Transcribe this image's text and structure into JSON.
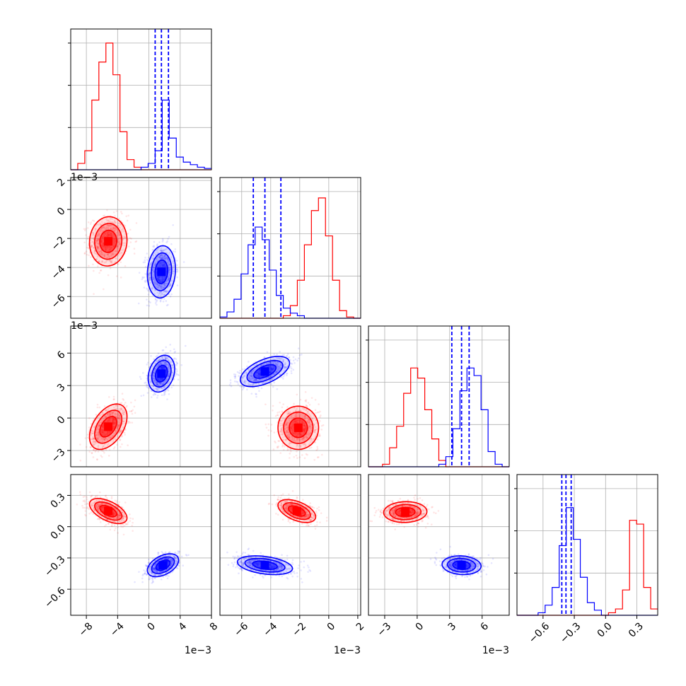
{
  "chart_data": {
    "type": "corner",
    "colors": {
      "red": "#ff0000",
      "blue": "#0000ff",
      "grid": "#b0b0b0",
      "frame": "#000000"
    },
    "grid": true,
    "parameters": [
      {
        "range": [
          -10,
          8
        ],
        "ticks": [
          -8,
          -4,
          0,
          4,
          8
        ],
        "tick_labels": [
          "−8",
          "−4",
          "0",
          "4",
          "8"
        ],
        "offset_text": "1e−3"
      },
      {
        "range": [
          -7.5,
          2.2
        ],
        "ticks": [
          -6,
          -4,
          -2,
          0,
          2
        ],
        "tick_labels": [
          "−6",
          "−4",
          "−2",
          "0",
          "2"
        ],
        "offset_text": "1e−3"
      },
      {
        "range": [
          -4.5,
          8.5
        ],
        "ticks": [
          -3,
          0,
          3,
          6
        ],
        "tick_labels": [
          "−3",
          "0",
          "3",
          "6"
        ],
        "offset_text": "1e−3"
      },
      {
        "range": [
          -0.85,
          0.5
        ],
        "ticks": [
          -0.6,
          -0.3,
          0.0,
          0.3
        ],
        "tick_labels": [
          "−0.6",
          "−0.3",
          "0.0",
          "0.3"
        ],
        "offset_text": ""
      }
    ],
    "histograms": [
      {
        "bin_range": [
          -10,
          8
        ],
        "red": [
          0,
          0.05,
          0.15,
          0.55,
          0.85,
          1.0,
          0.75,
          0.3,
          0.08,
          0.02,
          0,
          0,
          0,
          0,
          0,
          0,
          0,
          0,
          0,
          0
        ],
        "blue": [
          0,
          0,
          0,
          0,
          0,
          0,
          0,
          0,
          0,
          0,
          0.02,
          0.05,
          0.15,
          0.55,
          0.25,
          0.1,
          0.06,
          0.04,
          0.02,
          0.01
        ],
        "blue_quantiles": [
          0.8,
          1.6,
          2.5
        ]
      },
      {
        "bin_range": [
          -7.5,
          2.2
        ],
        "red": [
          0,
          0,
          0,
          0,
          0,
          0,
          0,
          0,
          0,
          0.02,
          0.1,
          0.3,
          0.58,
          0.85,
          0.95,
          0.65,
          0.3,
          0.06,
          0.01,
          0
        ],
        "blue": [
          0.01,
          0.05,
          0.15,
          0.35,
          0.58,
          0.72,
          0.62,
          0.38,
          0.18,
          0.08,
          0.04,
          0.02,
          0,
          0,
          0,
          0,
          0,
          0,
          0,
          0
        ],
        "blue_quantiles": [
          -5.2,
          -4.4,
          -3.3
        ]
      },
      {
        "bin_range": [
          -4.5,
          8.5
        ],
        "red": [
          0,
          0,
          0.02,
          0.15,
          0.32,
          0.58,
          0.78,
          0.7,
          0.45,
          0.22,
          0.05,
          0,
          0,
          0,
          0,
          0,
          0,
          0,
          0,
          0
        ],
        "blue": [
          0,
          0,
          0,
          0,
          0,
          0,
          0,
          0,
          0,
          0,
          0.02,
          0.08,
          0.3,
          0.6,
          0.78,
          0.72,
          0.45,
          0.12,
          0.02,
          0
        ],
        "blue_quantiles": [
          3.2,
          4.1,
          4.8
        ]
      },
      {
        "bin_range": [
          -0.85,
          0.5
        ],
        "red": [
          0,
          0,
          0,
          0,
          0,
          0,
          0,
          0,
          0,
          0,
          0,
          0,
          0,
          0.02,
          0.05,
          0.2,
          0.75,
          0.72,
          0.22,
          0.05
        ],
        "blue": [
          0,
          0,
          0,
          0.02,
          0.08,
          0.22,
          0.55,
          0.85,
          0.6,
          0.3,
          0.1,
          0.04,
          0,
          0,
          0,
          0,
          0,
          0,
          0,
          0
        ],
        "blue_quantiles": [
          -0.42,
          -0.38,
          -0.33
        ]
      }
    ],
    "clusters_2d": [
      {
        "x": 0,
        "y": 1,
        "red": {
          "center": [
            -5.2,
            -2.2
          ],
          "spread": [
            1.2,
            0.85
          ],
          "rho": 0.05
        },
        "blue": {
          "center": [
            1.6,
            -4.3
          ],
          "spread": [
            0.9,
            0.9
          ],
          "rho": 0.1
        }
      },
      {
        "x": 0,
        "y": 2,
        "red": {
          "center": [
            -5.2,
            -0.8
          ],
          "spread": [
            1.2,
            1.05
          ],
          "rho": 0.45
        },
        "blue": {
          "center": [
            1.6,
            4.1
          ],
          "spread": [
            0.85,
            0.85
          ],
          "rho": 0.25
        }
      },
      {
        "x": 0,
        "y": 3,
        "red": {
          "center": [
            -5.2,
            0.15
          ],
          "spread": [
            1.2,
            0.06
          ],
          "rho": -0.55
        },
        "blue": {
          "center": [
            1.8,
            -0.37
          ],
          "spread": [
            1.0,
            0.055
          ],
          "rho": 0.45
        }
      },
      {
        "x": 1,
        "y": 2,
        "red": {
          "center": [
            -2.1,
            -0.9
          ],
          "spread": [
            0.7,
            1.0
          ],
          "rho": 0.0
        },
        "blue": {
          "center": [
            -4.4,
            4.3
          ],
          "spread": [
            0.85,
            0.7
          ],
          "rho": 0.55
        }
      },
      {
        "x": 1,
        "y": 3,
        "red": {
          "center": [
            -2.2,
            0.15
          ],
          "spread": [
            0.65,
            0.055
          ],
          "rho": -0.5
        },
        "blue": {
          "center": [
            -4.4,
            -0.37
          ],
          "spread": [
            0.95,
            0.045
          ],
          "rho": -0.35
        }
      },
      {
        "x": 2,
        "y": 3,
        "red": {
          "center": [
            -1.1,
            0.14
          ],
          "spread": [
            1.0,
            0.05
          ],
          "rho": 0.05
        },
        "blue": {
          "center": [
            4.1,
            -0.37
          ],
          "spread": [
            0.9,
            0.045
          ],
          "rho": -0.1
        }
      }
    ]
  }
}
